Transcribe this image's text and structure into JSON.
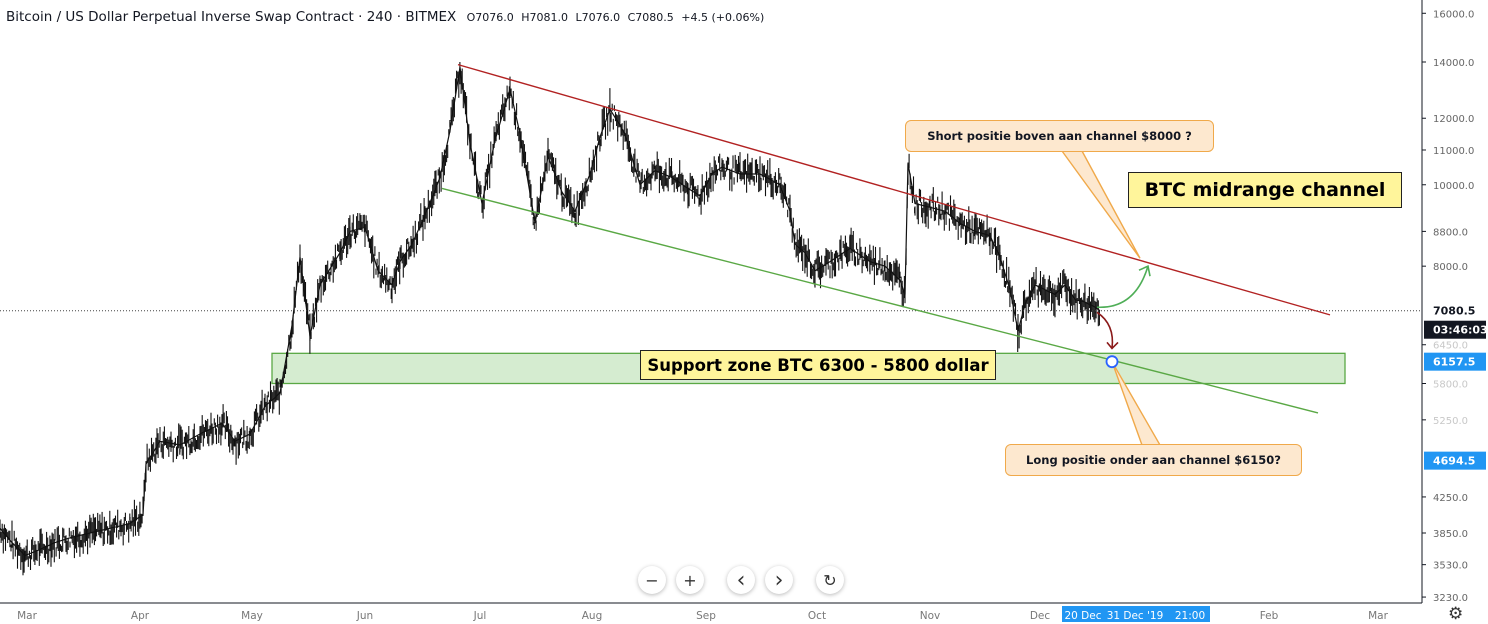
{
  "header": {
    "symbol": "Bitcoin / US Dollar Perpetual Inverse Swap Contract · 240 · BITMEX",
    "open": "O7076.0",
    "high": "H7081.0",
    "low": "L7076.0",
    "close": "C7080.5",
    "change": "+4.5 (+0.06%)"
  },
  "annotations": {
    "short_callout": "Short positie boven aan channel $8000 ?",
    "long_callout": "Long positie onder aan channel $6150?",
    "channel_label": "BTC midrange channel",
    "support_label": "Support zone BTC 6300 - 5800 dollar"
  },
  "nav": {
    "zoom_out": "−",
    "zoom_in": "+",
    "prev": "‹",
    "next": "›",
    "reset": "↻"
  },
  "icons": {
    "settings": "gear-icon"
  },
  "colors": {
    "resistance_line": "#b22222",
    "support_line": "#5aa845",
    "support_zone_fill": "#d5ecd0",
    "support_zone_border": "#5aa845",
    "last_price_bg": "#131722",
    "highlight_bg": "#2196f3",
    "callout_bg": "#fde8cf",
    "callout_border": "#f0a94a",
    "label_bg": "#fff59b"
  },
  "chart_data": {
    "type": "candlestick",
    "y_scale": "log",
    "y_ticks": [
      "16000.0",
      "14000.0",
      "12000.0",
      "11000.0",
      "10000.0",
      "8800.0",
      "8000.0",
      "6450.0",
      "5800.0",
      "5250.0",
      "4250.0",
      "3850.0",
      "3530.0",
      "3230.0"
    ],
    "x_ticks": [
      "Mar",
      "Apr",
      "May",
      "Jun",
      "Jul",
      "Aug",
      "Sep",
      "Oct",
      "Nov",
      "Dec",
      "Feb",
      "Mar"
    ],
    "price_badges": {
      "last_price": "7080.5",
      "countdown": "03:46:03",
      "level_1": "6157.5",
      "level_2": "4694.5"
    },
    "time_badges": [
      "20 Dec",
      "31 Dec '19",
      "21:00"
    ],
    "price_path": [
      [
        0,
        3900
      ],
      [
        12,
        3750
      ],
      [
        25,
        3620
      ],
      [
        40,
        3680
      ],
      [
        55,
        3750
      ],
      [
        70,
        3800
      ],
      [
        90,
        3850
      ],
      [
        110,
        3900
      ],
      [
        130,
        3950
      ],
      [
        143,
        4050
      ],
      [
        146,
        4650
      ],
      [
        160,
        4950
      ],
      [
        180,
        4900
      ],
      [
        200,
        5050
      ],
      [
        222,
        5200
      ],
      [
        235,
        4950
      ],
      [
        250,
        5050
      ],
      [
        265,
        5450
      ],
      [
        280,
        5650
      ],
      [
        292,
        6800
      ],
      [
        300,
        8200
      ],
      [
        310,
        6600
      ],
      [
        320,
        7600
      ],
      [
        340,
        8300
      ],
      [
        350,
        8800
      ],
      [
        365,
        8900
      ],
      [
        378,
        7900
      ],
      [
        392,
        7600
      ],
      [
        400,
        8100
      ],
      [
        412,
        8500
      ],
      [
        425,
        9200
      ],
      [
        440,
        10200
      ],
      [
        450,
        11600
      ],
      [
        460,
        13800
      ],
      [
        470,
        11200
      ],
      [
        482,
        9500
      ],
      [
        495,
        11300
      ],
      [
        510,
        13000
      ],
      [
        520,
        11500
      ],
      [
        535,
        9000
      ],
      [
        548,
        10800
      ],
      [
        562,
        9800
      ],
      [
        575,
        9300
      ],
      [
        590,
        10300
      ],
      [
        600,
        11400
      ],
      [
        610,
        12300
      ],
      [
        625,
        11500
      ],
      [
        640,
        10000
      ],
      [
        655,
        10400
      ],
      [
        672,
        10200
      ],
      [
        688,
        9900
      ],
      [
        700,
        9700
      ],
      [
        712,
        10300
      ],
      [
        722,
        10500
      ],
      [
        740,
        10300
      ],
      [
        760,
        10300
      ],
      [
        780,
        10000
      ],
      [
        790,
        9300
      ],
      [
        795,
        8500
      ],
      [
        805,
        8300
      ],
      [
        815,
        7900
      ],
      [
        830,
        8100
      ],
      [
        850,
        8400
      ],
      [
        870,
        8100
      ],
      [
        885,
        8000
      ],
      [
        900,
        7700
      ],
      [
        905,
        7400
      ],
      [
        908,
        10600
      ],
      [
        915,
        9500
      ],
      [
        930,
        9400
      ],
      [
        945,
        9300
      ],
      [
        960,
        9000
      ],
      [
        975,
        8800
      ],
      [
        990,
        8700
      ],
      [
        1000,
        8200
      ],
      [
        1010,
        7500
      ],
      [
        1018,
        6700
      ],
      [
        1025,
        7200
      ],
      [
        1035,
        7600
      ],
      [
        1045,
        7500
      ],
      [
        1055,
        7400
      ],
      [
        1065,
        7600
      ],
      [
        1075,
        7300
      ],
      [
        1085,
        7250
      ],
      [
        1095,
        7150
      ],
      [
        1100,
        7080
      ]
    ],
    "trendlines": [
      {
        "name": "resistance",
        "from": [
          458,
          13900
        ],
        "to": [
          1330,
          7000
        ]
      },
      {
        "name": "support",
        "from": [
          442,
          9900
        ],
        "to": [
          1318,
          5350
        ]
      }
    ],
    "zones": [
      {
        "name": "support zone",
        "x": [
          272,
          1345
        ],
        "y": [
          5800,
          6300
        ]
      }
    ],
    "projection_up": {
      "from": [
        1097,
        7150
      ],
      "to": [
        1148,
        8000
      ]
    },
    "projection_down": {
      "from": [
        1097,
        7050
      ],
      "to": [
        1112,
        6230
      ]
    }
  }
}
